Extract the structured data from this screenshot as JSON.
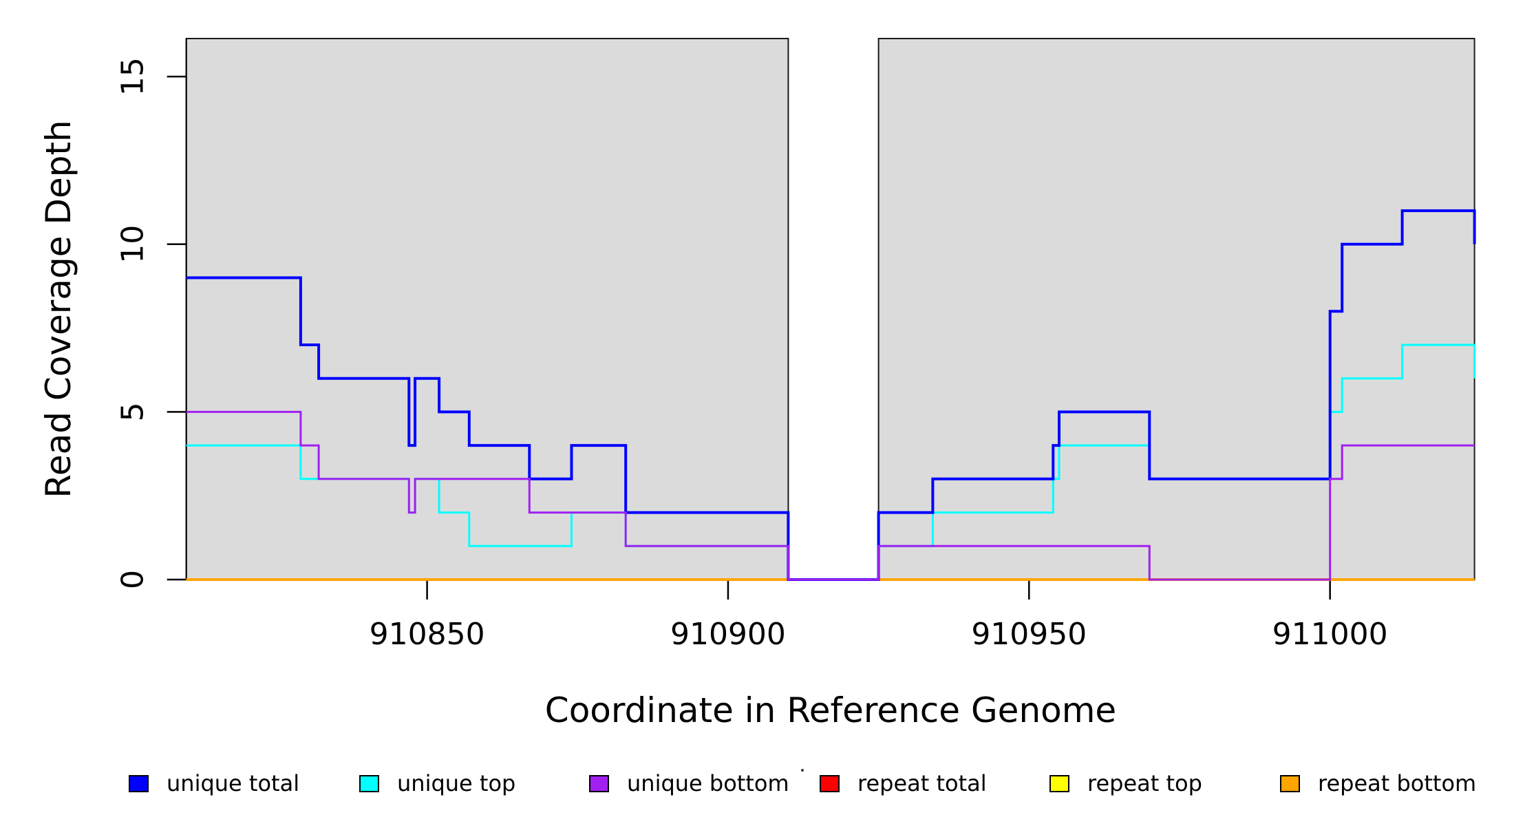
{
  "chart_data": {
    "type": "line",
    "subtype": "step",
    "title": "",
    "xlabel": "Coordinate in Reference Genome",
    "ylabel": "Read Coverage Depth",
    "xlim": [
      910810,
      911024
    ],
    "ylim": [
      0,
      16.1
    ],
    "x_ticks": [
      910850,
      910900,
      910950,
      911000
    ],
    "y_ticks": [
      0,
      5,
      10,
      15
    ],
    "grid": false,
    "legend_position": "bottom",
    "axis_color": "#000000",
    "background_regions": [
      {
        "name": "aligned-region-1",
        "from": 910810,
        "to": 910910,
        "color": "#DBDBDB",
        "border": "#1a1a1a"
      },
      {
        "name": "aligned-region-2",
        "from": 910925,
        "to": 911024,
        "color": "#DBDBDB",
        "border": "#1a1a1a"
      }
    ],
    "gap_region": {
      "from": 910910,
      "to": 910925
    },
    "series": [
      {
        "name": "unique total",
        "color": "#0000FF",
        "width": 4,
        "points": [
          [
            910810,
            9
          ],
          [
            910829,
            7
          ],
          [
            910832,
            6
          ],
          [
            910847,
            4
          ],
          [
            910848,
            6
          ],
          [
            910852,
            5
          ],
          [
            910857,
            4
          ],
          [
            910867,
            3
          ],
          [
            910874,
            4
          ],
          [
            910883,
            2
          ],
          [
            910910,
            0
          ],
          [
            910925,
            2
          ],
          [
            910934,
            3
          ],
          [
            910954,
            4
          ],
          [
            910955,
            5
          ],
          [
            910970,
            3
          ],
          [
            911000,
            8
          ],
          [
            911002,
            10
          ],
          [
            911012,
            11
          ],
          [
            911024,
            10
          ]
        ]
      },
      {
        "name": "unique top",
        "color": "#00FFFF",
        "width": 3,
        "points": [
          [
            910810,
            4
          ],
          [
            910829,
            3
          ],
          [
            910847,
            2
          ],
          [
            910848,
            3
          ],
          [
            910852,
            2
          ],
          [
            910857,
            1
          ],
          [
            910874,
            2
          ],
          [
            910883,
            1
          ],
          [
            910910,
            0
          ],
          [
            910925,
            1
          ],
          [
            910934,
            2
          ],
          [
            910954,
            3
          ],
          [
            910955,
            4
          ],
          [
            910970,
            3
          ],
          [
            911000,
            5
          ],
          [
            911002,
            6
          ],
          [
            911012,
            7
          ],
          [
            911024,
            6
          ]
        ]
      },
      {
        "name": "unique bottom",
        "color": "#A020F0",
        "width": 3,
        "points": [
          [
            910810,
            5
          ],
          [
            910829,
            4
          ],
          [
            910832,
            3
          ],
          [
            910847,
            2
          ],
          [
            910848,
            3
          ],
          [
            910867,
            2
          ],
          [
            910883,
            1
          ],
          [
            910910,
            0
          ],
          [
            910925,
            1
          ],
          [
            910970,
            0
          ],
          [
            911000,
            3
          ],
          [
            911002,
            4
          ]
        ]
      },
      {
        "name": "repeat total",
        "color": "#FF0000",
        "width": 3,
        "points": [
          [
            910810,
            0
          ]
        ]
      },
      {
        "name": "repeat top",
        "color": "#FFFF00",
        "width": 3,
        "points": [
          [
            910810,
            0
          ]
        ]
      },
      {
        "name": "repeat bottom",
        "color": "#FFA500",
        "width": 4,
        "points": [
          [
            910810,
            0
          ]
        ]
      }
    ],
    "draw_order": [
      "repeat total",
      "repeat top",
      "repeat bottom",
      "unique top",
      "unique total",
      "unique bottom"
    ],
    "series_end": 911024
  },
  "legend": {
    "items": [
      {
        "label": "unique total",
        "color": "#0000FF"
      },
      {
        "label": "unique top",
        "color": "#00FFFF"
      },
      {
        "label": "unique bottom",
        "color": "#A020F0"
      },
      {
        "label": "repeat total",
        "color": "#FF0000"
      },
      {
        "label": "repeat top",
        "color": "#FFFF00"
      },
      {
        "label": "repeat bottom",
        "color": "#FFA500"
      }
    ]
  }
}
